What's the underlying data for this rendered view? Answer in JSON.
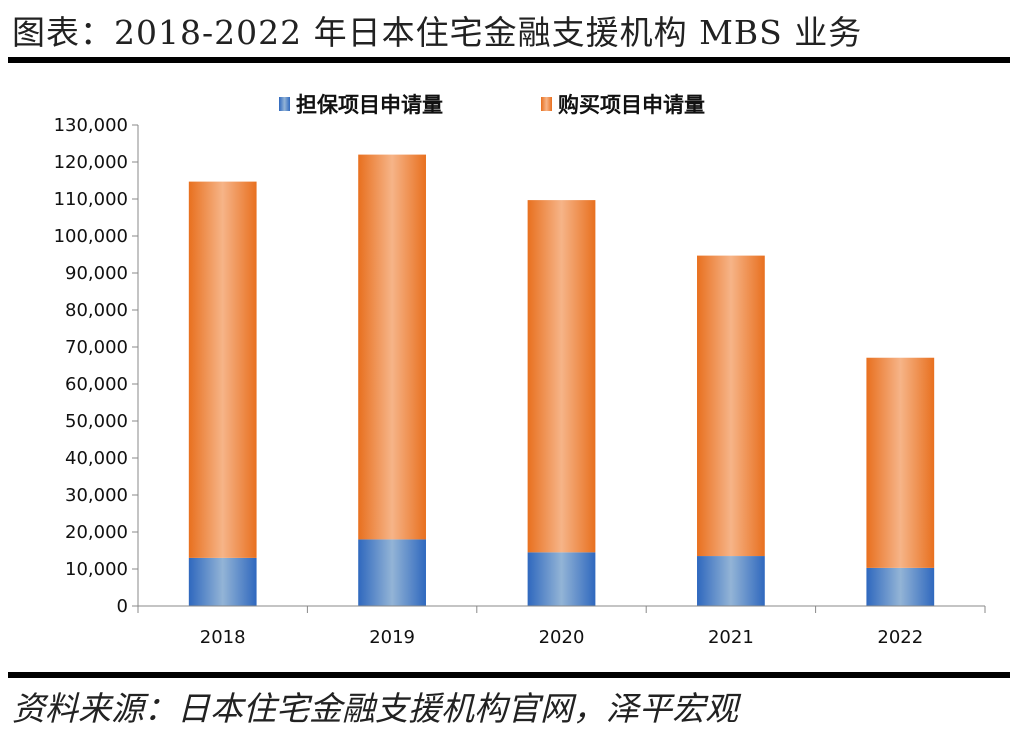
{
  "figure": {
    "title": "图表：2018-2022 年日本住宅金融支援机构 MBS 业务",
    "source": "资料来源：日本住宅金融支援机构官网，泽平宏观"
  },
  "colors": {
    "guarantee": "#3d76c7",
    "purchase": "#ec7a2b"
  },
  "chart_data": {
    "type": "bar",
    "stacked": true,
    "categories": [
      "2018",
      "2019",
      "2020",
      "2021",
      "2022"
    ],
    "series": [
      {
        "name": "担保项目申请量",
        "values": [
          13000,
          18000,
          14500,
          13500,
          10300
        ]
      },
      {
        "name": "购买项目申请量",
        "values": [
          101700,
          104000,
          95200,
          81200,
          56800
        ]
      }
    ],
    "ylim": [
      0,
      130000
    ],
    "ytick_step": 10000,
    "ytick_labels": [
      "0",
      "10,000",
      "20,000",
      "30,000",
      "40,000",
      "50,000",
      "60,000",
      "70,000",
      "80,000",
      "90,000",
      "100,000",
      "110,000",
      "120,000",
      "130,000"
    ],
    "legend_position": "top",
    "grid": false
  }
}
